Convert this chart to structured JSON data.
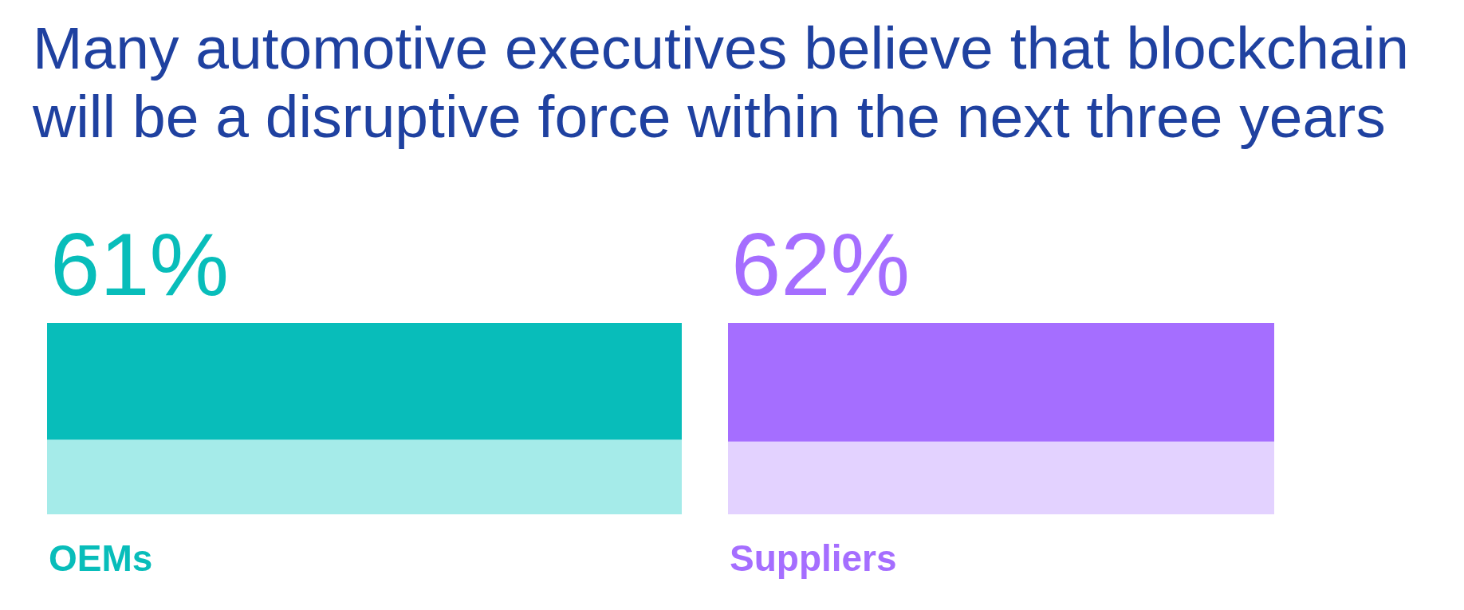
{
  "chart_data": {
    "type": "bar",
    "title": "Many automotive executives believe that blockchain will be a disruptive force within the next three years",
    "categories": [
      "OEMs",
      "Suppliers"
    ],
    "stacked": true,
    "series": [
      {
        "colors": [
          "#a5ebe9",
          "#e3d2ff"
        ],
        "values": [
          39,
          38
        ]
      },
      {
        "colors": [
          "#08bdba",
          "#a56eff"
        ],
        "values": [
          61,
          62
        ],
        "value_labels": [
          "61%",
          "62%"
        ]
      }
    ],
    "ylim": [
      0,
      100
    ],
    "tick_labels": "x"
  }
}
